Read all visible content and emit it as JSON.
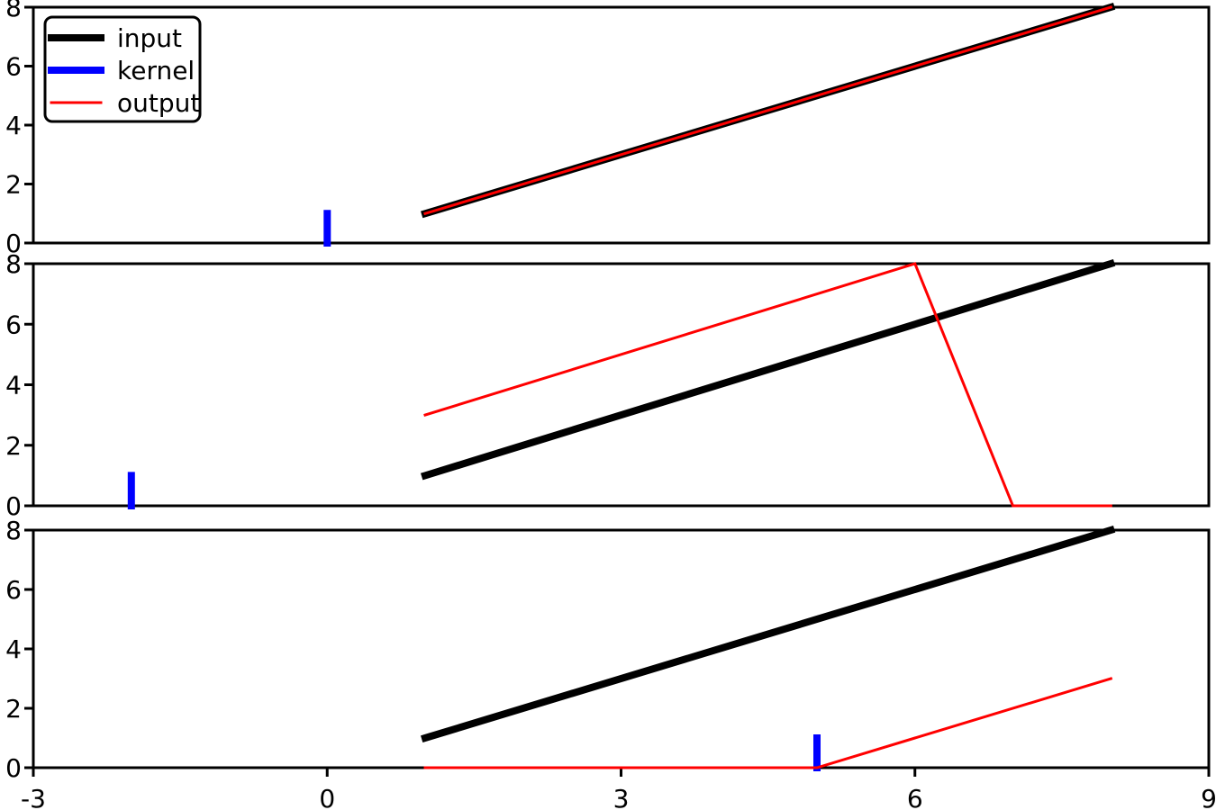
{
  "figure": {
    "background": "#ffffff",
    "kind": "matplotlib-style line figure, 3 stacked subplots with shared x axis"
  },
  "colors": {
    "input": "#000000",
    "kernel": "#0000ff",
    "output": "#ff0000",
    "axis": "#000000",
    "tick_label": "#000000",
    "legend_border": "#000000",
    "legend_background": "#ffffff"
  },
  "legend": {
    "location": "upper left of first subplot",
    "entries": [
      {
        "label": "input",
        "color": "#000000",
        "line_width": 8
      },
      {
        "label": "kernel",
        "color": "#0000ff",
        "line_width": 8
      },
      {
        "label": "output",
        "color": "#ff0000",
        "line_width": 3
      }
    ]
  },
  "axis": {
    "xlim": [
      -3,
      9
    ],
    "ylim": [
      0,
      8
    ],
    "x_ticks": [
      -3,
      0,
      3,
      6,
      9
    ],
    "x_tick_labels": [
      "-3",
      "0",
      "3",
      "6",
      "9"
    ],
    "y_ticks": [
      0,
      2,
      4,
      6,
      8
    ],
    "y_tick_labels": [
      "0",
      "2",
      "4",
      "6",
      "8"
    ],
    "grid": false,
    "title": "",
    "xlabel": "",
    "ylabel": ""
  },
  "chart_data": [
    {
      "type": "line",
      "panel": 1,
      "xlim": [
        -3,
        9
      ],
      "ylim": [
        0,
        8
      ],
      "grid": false,
      "legend_visible": true,
      "x_tick_labels_visible": false,
      "series": [
        {
          "name": "input",
          "color": "#000000",
          "line_width": 8,
          "points": [
            [
              1,
              1
            ],
            [
              8,
              8
            ]
          ]
        },
        {
          "name": "kernel",
          "color": "#0000ff",
          "line_width": 8,
          "points": [
            [
              0,
              0
            ],
            [
              0,
              1
            ]
          ]
        },
        {
          "name": "output",
          "color": "#ff0000",
          "line_width": 3,
          "points": [
            [
              1,
              1
            ],
            [
              8,
              8
            ]
          ]
        }
      ]
    },
    {
      "type": "line",
      "panel": 2,
      "xlim": [
        -3,
        9
      ],
      "ylim": [
        0,
        8
      ],
      "grid": false,
      "legend_visible": false,
      "x_tick_labels_visible": false,
      "series": [
        {
          "name": "input",
          "color": "#000000",
          "line_width": 8,
          "points": [
            [
              1,
              1
            ],
            [
              8,
              8
            ]
          ]
        },
        {
          "name": "kernel",
          "color": "#0000ff",
          "line_width": 8,
          "points": [
            [
              -2,
              0
            ],
            [
              -2,
              1
            ]
          ]
        },
        {
          "name": "output",
          "color": "#ff0000",
          "line_width": 3,
          "points": [
            [
              1,
              3
            ],
            [
              6,
              8
            ],
            [
              7,
              0
            ],
            [
              8,
              0
            ]
          ]
        }
      ]
    },
    {
      "type": "line",
      "panel": 3,
      "xlim": [
        -3,
        9
      ],
      "ylim": [
        0,
        8
      ],
      "grid": false,
      "legend_visible": false,
      "x_tick_labels_visible": true,
      "series": [
        {
          "name": "input",
          "color": "#000000",
          "line_width": 8,
          "points": [
            [
              1,
              1
            ],
            [
              8,
              8
            ]
          ]
        },
        {
          "name": "kernel",
          "color": "#0000ff",
          "line_width": 8,
          "points": [
            [
              5,
              0
            ],
            [
              5,
              1
            ]
          ]
        },
        {
          "name": "output",
          "color": "#ff0000",
          "line_width": 3,
          "points": [
            [
              1,
              0
            ],
            [
              5,
              0
            ],
            [
              8,
              3
            ]
          ]
        }
      ]
    }
  ]
}
